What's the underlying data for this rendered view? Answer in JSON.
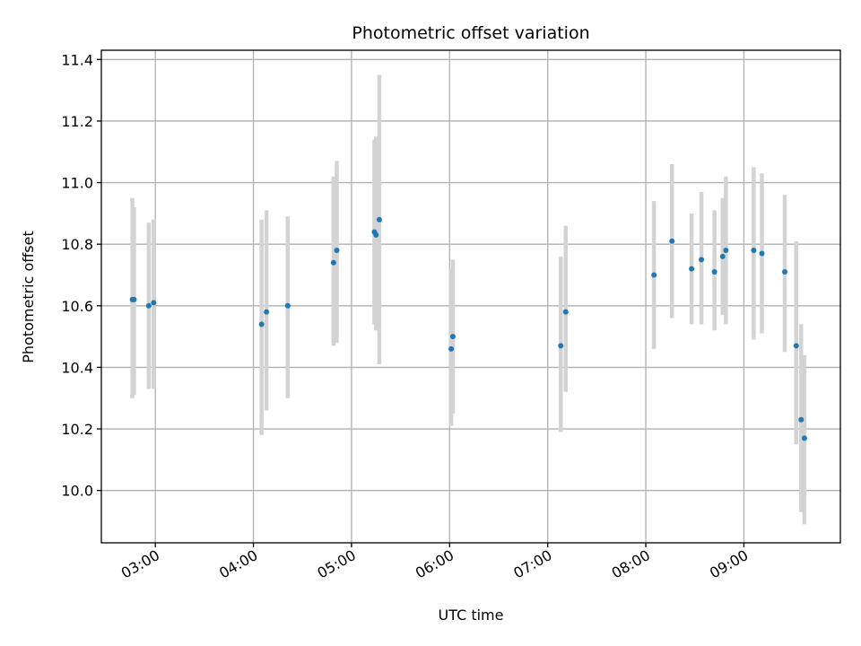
{
  "chart_data": {
    "type": "scatter",
    "title": "Photometric offset variation",
    "xlabel": "UTC time",
    "ylabel": "Photometric offset",
    "x_ticks": [
      "03:00",
      "04:00",
      "05:00",
      "06:00",
      "07:00",
      "08:00",
      "09:00"
    ],
    "y_ticks": [
      "10.0",
      "10.2",
      "10.4",
      "10.6",
      "10.8",
      "11.0",
      "11.2",
      "11.4"
    ],
    "xlim": [
      "02:27",
      "09:59"
    ],
    "ylim": [
      9.83,
      11.43
    ],
    "grid": true,
    "colors": {
      "points": "#1f77b4",
      "errorbars": "#d3d3d3",
      "grid": "#b0b0b0"
    },
    "points": [
      {
        "t": "02:46",
        "y": 10.62,
        "lo": 10.3,
        "hi": 10.95
      },
      {
        "t": "02:47",
        "y": 10.62,
        "lo": 10.31,
        "hi": 10.92
      },
      {
        "t": "02:56",
        "y": 10.6,
        "lo": 10.33,
        "hi": 10.87
      },
      {
        "t": "02:59",
        "y": 10.61,
        "lo": 10.33,
        "hi": 10.88
      },
      {
        "t": "04:05",
        "y": 10.54,
        "lo": 10.18,
        "hi": 10.88
      },
      {
        "t": "04:08",
        "y": 10.58,
        "lo": 10.26,
        "hi": 10.91
      },
      {
        "t": "04:21",
        "y": 10.6,
        "lo": 10.3,
        "hi": 10.89
      },
      {
        "t": "04:49",
        "y": 10.74,
        "lo": 10.47,
        "hi": 11.02
      },
      {
        "t": "04:51",
        "y": 10.78,
        "lo": 10.48,
        "hi": 11.07
      },
      {
        "t": "05:14",
        "y": 10.84,
        "lo": 10.54,
        "hi": 11.14
      },
      {
        "t": "05:15",
        "y": 10.83,
        "lo": 10.52,
        "hi": 11.15
      },
      {
        "t": "05:17",
        "y": 10.88,
        "lo": 10.41,
        "hi": 11.35
      },
      {
        "t": "06:01",
        "y": 10.46,
        "lo": 10.21,
        "hi": 10.72
      },
      {
        "t": "06:02",
        "y": 10.5,
        "lo": 10.25,
        "hi": 10.75
      },
      {
        "t": "07:08",
        "y": 10.47,
        "lo": 10.19,
        "hi": 10.76
      },
      {
        "t": "07:11",
        "y": 10.58,
        "lo": 10.32,
        "hi": 10.86
      },
      {
        "t": "08:05",
        "y": 10.7,
        "lo": 10.46,
        "hi": 10.94
      },
      {
        "t": "08:16",
        "y": 10.81,
        "lo": 10.56,
        "hi": 11.06
      },
      {
        "t": "08:28",
        "y": 10.72,
        "lo": 10.54,
        "hi": 10.9
      },
      {
        "t": "08:34",
        "y": 10.75,
        "lo": 10.54,
        "hi": 10.97
      },
      {
        "t": "08:42",
        "y": 10.71,
        "lo": 10.52,
        "hi": 10.91
      },
      {
        "t": "08:47",
        "y": 10.76,
        "lo": 10.57,
        "hi": 10.95
      },
      {
        "t": "08:49",
        "y": 10.78,
        "lo": 10.54,
        "hi": 11.02
      },
      {
        "t": "09:06",
        "y": 10.78,
        "lo": 10.49,
        "hi": 11.05
      },
      {
        "t": "09:11",
        "y": 10.77,
        "lo": 10.51,
        "hi": 11.03
      },
      {
        "t": "09:25",
        "y": 10.71,
        "lo": 10.45,
        "hi": 10.96
      },
      {
        "t": "09:32",
        "y": 10.47,
        "lo": 10.15,
        "hi": 10.81
      },
      {
        "t": "09:35",
        "y": 10.23,
        "lo": 9.93,
        "hi": 10.54
      },
      {
        "t": "09:37",
        "y": 10.17,
        "lo": 9.89,
        "hi": 10.44
      }
    ]
  }
}
